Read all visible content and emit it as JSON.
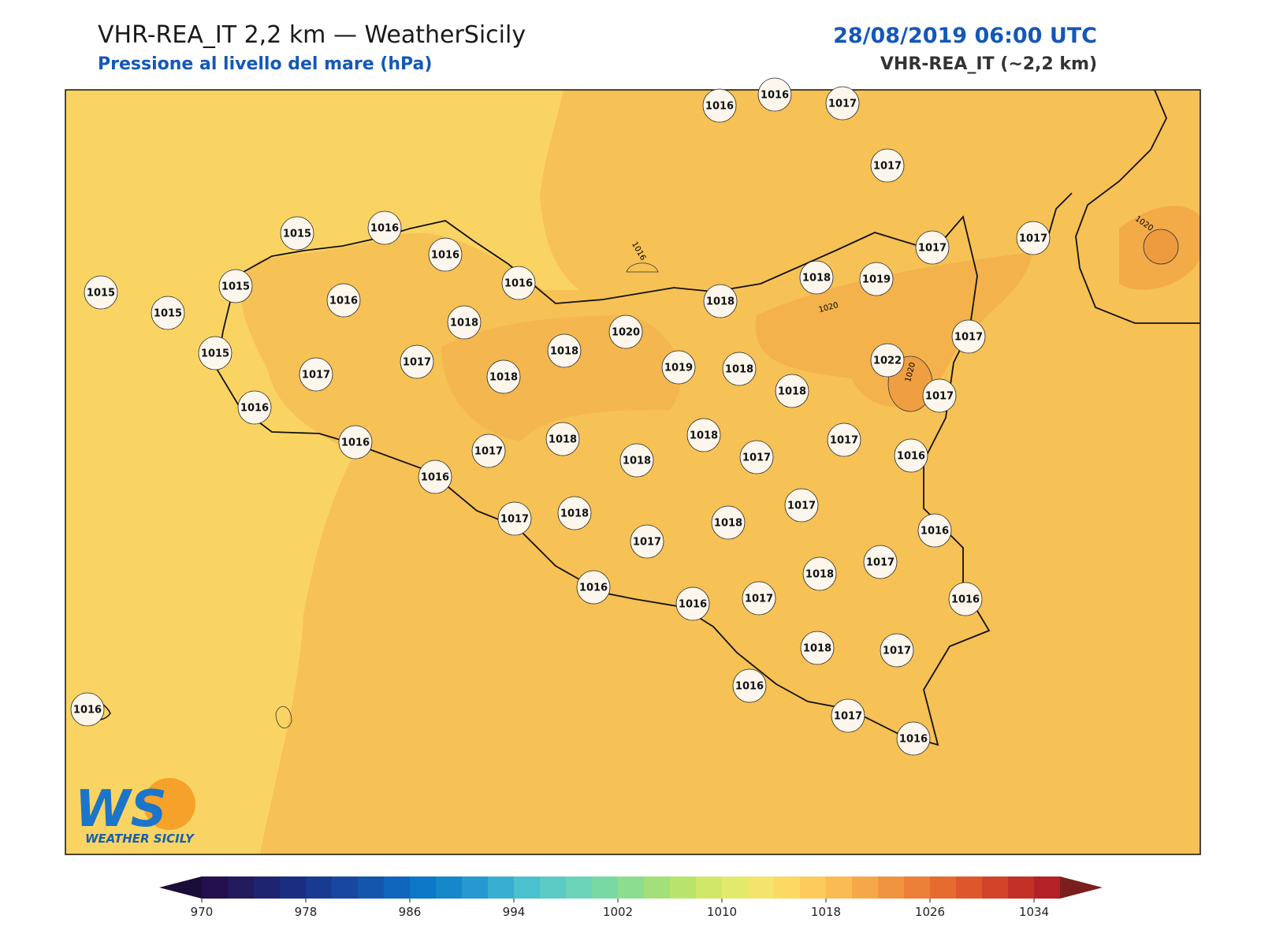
{
  "header": {
    "title": "VHR-REA_IT 2,2 km — WeatherSicily",
    "subtitle": "Pressione al livello del mare (hPa)",
    "datetime": "28/08/2019 06:00 UTC",
    "model": "VHR-REA_IT (~2,2 km)"
  },
  "map": {
    "stations": [
      1016,
      1016,
      1017,
      1017,
      1015,
      1016,
      1016,
      1016,
      1015,
      1015,
      1016,
      1015,
      1018,
      1015,
      1017,
      1017,
      1018,
      1018,
      1020,
      1019,
      1018,
      1018,
      1019,
      1017,
      1017,
      1017,
      1022,
      1018,
      1018,
      1017,
      1016,
      1016,
      1017,
      1018,
      1018,
      1018,
      1017,
      1017,
      1016,
      1016,
      1017,
      1018,
      1017,
      1018,
      1017,
      1016,
      1017,
      1018,
      1016,
      1016,
      1017,
      1016,
      1018,
      1017,
      1016,
      1017,
      1016,
      1016
    ],
    "contour_labels": [
      "1016",
      "1020",
      "1020",
      "1020"
    ]
  },
  "colorbar": {
    "lim": [
      970,
      1036
    ],
    "ticks": [
      970,
      978,
      986,
      994,
      1002,
      1010,
      1018,
      1026,
      1034
    ],
    "colors": [
      "#23104d",
      "#241a5e",
      "#1f2470",
      "#1b2d80",
      "#193a91",
      "#1747a1",
      "#1456ae",
      "#1066ba",
      "#0c78c6",
      "#1588cc",
      "#2798d0",
      "#38afd2",
      "#4bc1cf",
      "#5ccbc5",
      "#6ad3b8",
      "#79d9a5",
      "#8ddd8f",
      "#a3e07a",
      "#b9e46c",
      "#cfe86a",
      "#e2ea6e",
      "#f3e46c",
      "#fbd962",
      "#fccb5b",
      "#f9bb52",
      "#f5a849",
      "#f09440",
      "#ec8038",
      "#e66b31",
      "#de572c",
      "#d24329",
      "#c33028",
      "#b32226"
    ],
    "extend_colors": [
      "#1a0d3a",
      "#7a1e1e"
    ]
  },
  "logo": {
    "text": "WS",
    "caption": "WEATHER SICILY"
  }
}
